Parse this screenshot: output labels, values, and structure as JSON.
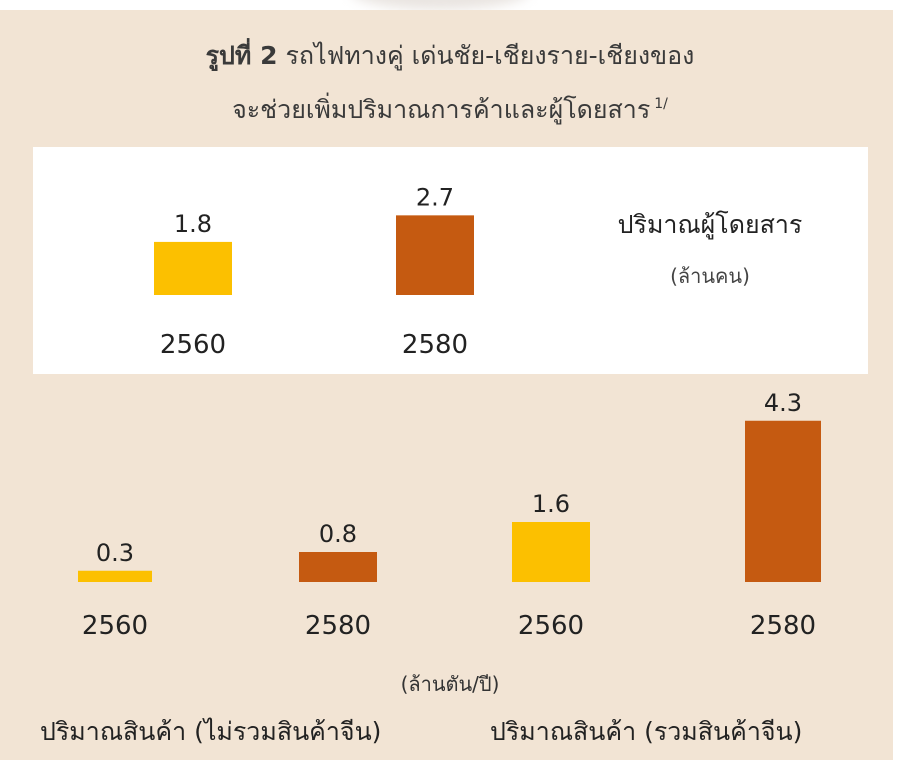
{
  "title": {
    "line1_bold": "รูปที่ 2",
    "line1_rest": "รถไฟทางคู่ เด่นชัย-เชียงราย-เชียงของ",
    "line2": "จะช่วยเพิ่มปริมาณการค้าและผู้โดยสาร",
    "footnote_mark": "1/"
  },
  "colors": {
    "bar_2560": "#fcc000",
    "bar_2580": "#c55a11",
    "panel": "#f2e4d4"
  },
  "chart_data": [
    {
      "type": "bar",
      "title": "ปริมาณผู้โดยสาร",
      "unit": "(ล้านคน)",
      "categories": [
        "2560",
        "2580"
      ],
      "values": [
        1.8,
        2.7
      ],
      "data_labels": [
        "1.8",
        "2.7"
      ]
    },
    {
      "type": "bar",
      "unit": "(ล้านตัน/ปี)",
      "groups": [
        {
          "name": "ปริมาณสินค้า (ไม่รวมสินค้าจีน)",
          "categories": [
            "2560",
            "2580"
          ],
          "values": [
            0.3,
            0.8
          ],
          "data_labels": [
            "0.3",
            "0.8"
          ]
        },
        {
          "name": "ปริมาณสินค้า (รวมสินค้าจีน)",
          "categories": [
            "2560",
            "2580"
          ],
          "values": [
            1.6,
            4.3
          ],
          "data_labels": [
            "1.6",
            "4.3"
          ]
        }
      ]
    }
  ]
}
